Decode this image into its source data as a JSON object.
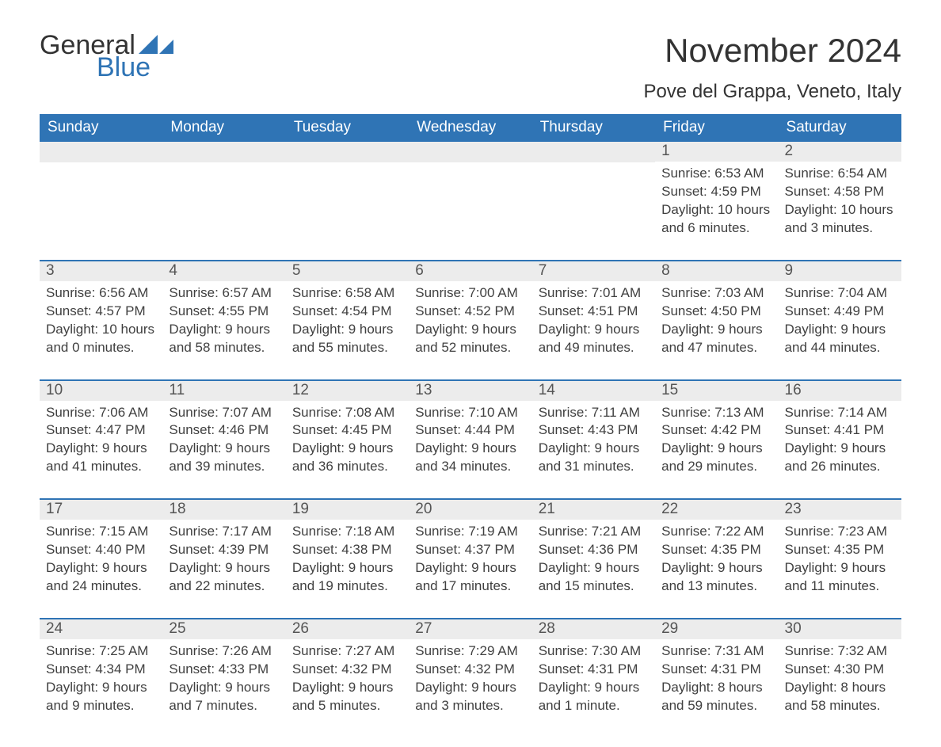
{
  "logo": {
    "word1": "General",
    "word2": "Blue",
    "text_color": "#333333",
    "accent_color": "#2f74b5"
  },
  "header": {
    "month_title": "November 2024",
    "location": "Pove del Grappa, Veneto, Italy"
  },
  "calendar": {
    "type": "table",
    "header_bg": "#2f74b5",
    "header_text_color": "#ffffff",
    "row_divider_color": "#2f74b5",
    "daynum_bg": "#ececec",
    "daynum_color": "#555555",
    "body_text_color": "#404040",
    "background_color": "#ffffff",
    "days_of_week": [
      "Sunday",
      "Monday",
      "Tuesday",
      "Wednesday",
      "Thursday",
      "Friday",
      "Saturday"
    ],
    "weeks": [
      [
        null,
        null,
        null,
        null,
        null,
        {
          "n": "1",
          "sunrise": "Sunrise: 6:53 AM",
          "sunset": "Sunset: 4:59 PM",
          "daylight": "Daylight: 10 hours and 6 minutes."
        },
        {
          "n": "2",
          "sunrise": "Sunrise: 6:54 AM",
          "sunset": "Sunset: 4:58 PM",
          "daylight": "Daylight: 10 hours and 3 minutes."
        }
      ],
      [
        {
          "n": "3",
          "sunrise": "Sunrise: 6:56 AM",
          "sunset": "Sunset: 4:57 PM",
          "daylight": "Daylight: 10 hours and 0 minutes."
        },
        {
          "n": "4",
          "sunrise": "Sunrise: 6:57 AM",
          "sunset": "Sunset: 4:55 PM",
          "daylight": "Daylight: 9 hours and 58 minutes."
        },
        {
          "n": "5",
          "sunrise": "Sunrise: 6:58 AM",
          "sunset": "Sunset: 4:54 PM",
          "daylight": "Daylight: 9 hours and 55 minutes."
        },
        {
          "n": "6",
          "sunrise": "Sunrise: 7:00 AM",
          "sunset": "Sunset: 4:52 PM",
          "daylight": "Daylight: 9 hours and 52 minutes."
        },
        {
          "n": "7",
          "sunrise": "Sunrise: 7:01 AM",
          "sunset": "Sunset: 4:51 PM",
          "daylight": "Daylight: 9 hours and 49 minutes."
        },
        {
          "n": "8",
          "sunrise": "Sunrise: 7:03 AM",
          "sunset": "Sunset: 4:50 PM",
          "daylight": "Daylight: 9 hours and 47 minutes."
        },
        {
          "n": "9",
          "sunrise": "Sunrise: 7:04 AM",
          "sunset": "Sunset: 4:49 PM",
          "daylight": "Daylight: 9 hours and 44 minutes."
        }
      ],
      [
        {
          "n": "10",
          "sunrise": "Sunrise: 7:06 AM",
          "sunset": "Sunset: 4:47 PM",
          "daylight": "Daylight: 9 hours and 41 minutes."
        },
        {
          "n": "11",
          "sunrise": "Sunrise: 7:07 AM",
          "sunset": "Sunset: 4:46 PM",
          "daylight": "Daylight: 9 hours and 39 minutes."
        },
        {
          "n": "12",
          "sunrise": "Sunrise: 7:08 AM",
          "sunset": "Sunset: 4:45 PM",
          "daylight": "Daylight: 9 hours and 36 minutes."
        },
        {
          "n": "13",
          "sunrise": "Sunrise: 7:10 AM",
          "sunset": "Sunset: 4:44 PM",
          "daylight": "Daylight: 9 hours and 34 minutes."
        },
        {
          "n": "14",
          "sunrise": "Sunrise: 7:11 AM",
          "sunset": "Sunset: 4:43 PM",
          "daylight": "Daylight: 9 hours and 31 minutes."
        },
        {
          "n": "15",
          "sunrise": "Sunrise: 7:13 AM",
          "sunset": "Sunset: 4:42 PM",
          "daylight": "Daylight: 9 hours and 29 minutes."
        },
        {
          "n": "16",
          "sunrise": "Sunrise: 7:14 AM",
          "sunset": "Sunset: 4:41 PM",
          "daylight": "Daylight: 9 hours and 26 minutes."
        }
      ],
      [
        {
          "n": "17",
          "sunrise": "Sunrise: 7:15 AM",
          "sunset": "Sunset: 4:40 PM",
          "daylight": "Daylight: 9 hours and 24 minutes."
        },
        {
          "n": "18",
          "sunrise": "Sunrise: 7:17 AM",
          "sunset": "Sunset: 4:39 PM",
          "daylight": "Daylight: 9 hours and 22 minutes."
        },
        {
          "n": "19",
          "sunrise": "Sunrise: 7:18 AM",
          "sunset": "Sunset: 4:38 PM",
          "daylight": "Daylight: 9 hours and 19 minutes."
        },
        {
          "n": "20",
          "sunrise": "Sunrise: 7:19 AM",
          "sunset": "Sunset: 4:37 PM",
          "daylight": "Daylight: 9 hours and 17 minutes."
        },
        {
          "n": "21",
          "sunrise": "Sunrise: 7:21 AM",
          "sunset": "Sunset: 4:36 PM",
          "daylight": "Daylight: 9 hours and 15 minutes."
        },
        {
          "n": "22",
          "sunrise": "Sunrise: 7:22 AM",
          "sunset": "Sunset: 4:35 PM",
          "daylight": "Daylight: 9 hours and 13 minutes."
        },
        {
          "n": "23",
          "sunrise": "Sunrise: 7:23 AM",
          "sunset": "Sunset: 4:35 PM",
          "daylight": "Daylight: 9 hours and 11 minutes."
        }
      ],
      [
        {
          "n": "24",
          "sunrise": "Sunrise: 7:25 AM",
          "sunset": "Sunset: 4:34 PM",
          "daylight": "Daylight: 9 hours and 9 minutes."
        },
        {
          "n": "25",
          "sunrise": "Sunrise: 7:26 AM",
          "sunset": "Sunset: 4:33 PM",
          "daylight": "Daylight: 9 hours and 7 minutes."
        },
        {
          "n": "26",
          "sunrise": "Sunrise: 7:27 AM",
          "sunset": "Sunset: 4:32 PM",
          "daylight": "Daylight: 9 hours and 5 minutes."
        },
        {
          "n": "27",
          "sunrise": "Sunrise: 7:29 AM",
          "sunset": "Sunset: 4:32 PM",
          "daylight": "Daylight: 9 hours and 3 minutes."
        },
        {
          "n": "28",
          "sunrise": "Sunrise: 7:30 AM",
          "sunset": "Sunset: 4:31 PM",
          "daylight": "Daylight: 9 hours and 1 minute."
        },
        {
          "n": "29",
          "sunrise": "Sunrise: 7:31 AM",
          "sunset": "Sunset: 4:31 PM",
          "daylight": "Daylight: 8 hours and 59 minutes."
        },
        {
          "n": "30",
          "sunrise": "Sunrise: 7:32 AM",
          "sunset": "Sunset: 4:30 PM",
          "daylight": "Daylight: 8 hours and 58 minutes."
        }
      ]
    ]
  }
}
